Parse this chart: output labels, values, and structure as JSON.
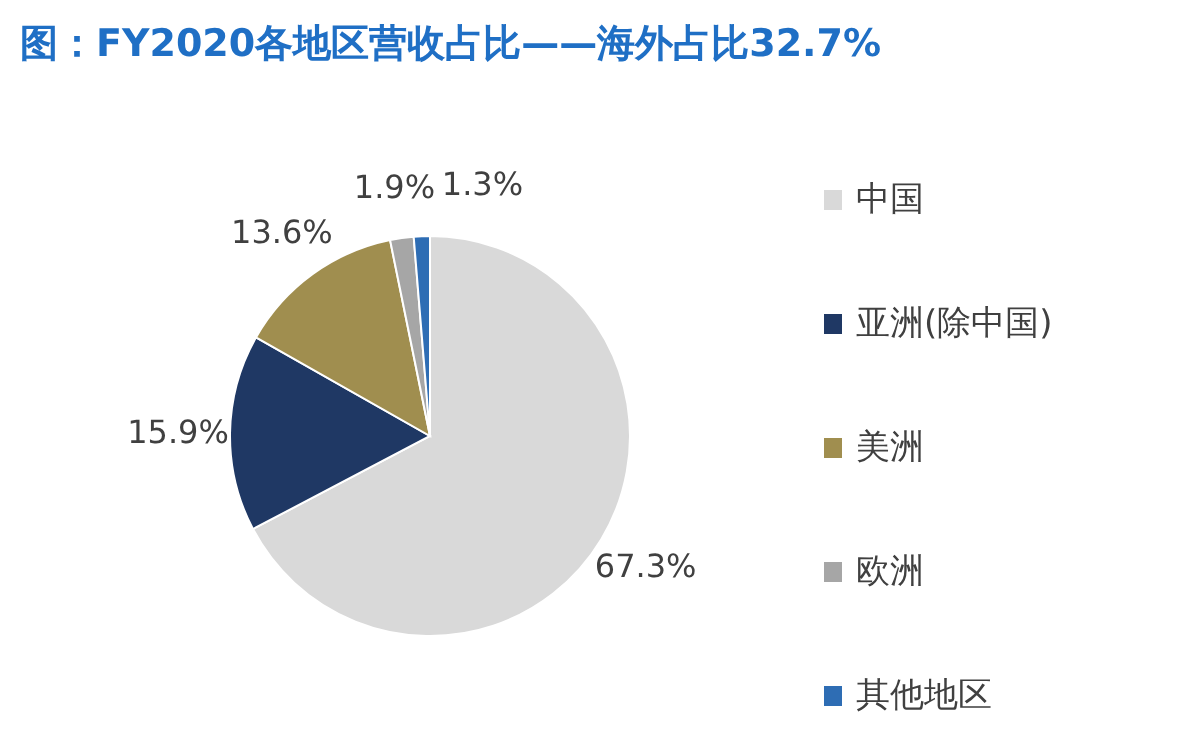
{
  "chart_data": {
    "type": "pie",
    "title": "图：FY2020各地区营收占比——海外占比32.7%",
    "categories": [
      "中国",
      "亚洲(除中国)",
      "美洲",
      "欧洲",
      "其他地区"
    ],
    "values": [
      67.3,
      15.9,
      13.6,
      1.9,
      1.3
    ],
    "colors": [
      "#d9d9d9",
      "#1f3864",
      "#a08e4f",
      "#a6a6a6",
      "#2e6db4"
    ],
    "value_labels": [
      "67.3%",
      "15.9%",
      "13.6%",
      "1.9%",
      "1.3%"
    ],
    "legend": "right"
  }
}
